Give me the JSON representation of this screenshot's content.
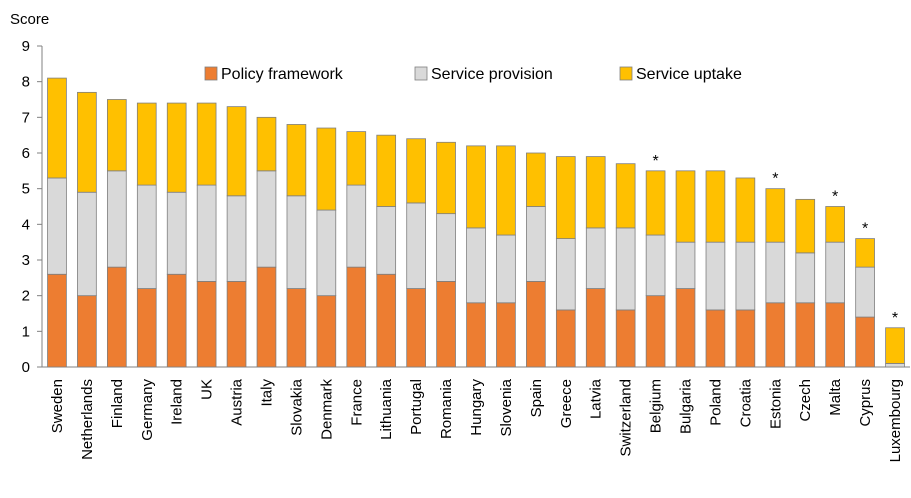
{
  "chart_data": {
    "type": "bar",
    "stacked": true,
    "ylabel": "Score",
    "ylim": [
      0,
      9
    ],
    "yticks": [
      0,
      1,
      2,
      3,
      4,
      5,
      6,
      7,
      8,
      9
    ],
    "grid": false,
    "legend": "top-center",
    "categories": [
      "Sweden",
      "Netherlands",
      "Finland",
      "Germany",
      "Ireland",
      "UK",
      "Austria",
      "Italy",
      "Slovakia",
      "Denmark",
      "France",
      "Lithuania",
      "Portugal",
      "Romania",
      "Hungary",
      "Slovenia",
      "Spain",
      "Greece",
      "Latvia",
      "Switzerland",
      "Belgium",
      "Bulgaria",
      "Poland",
      "Croatia",
      "Estonia",
      "Czech",
      "Malta",
      "Cyprus",
      "Luxembourg"
    ],
    "series": [
      {
        "name": "Policy framework",
        "color": "#ED7D31",
        "values": [
          2.6,
          2.0,
          2.8,
          2.2,
          2.6,
          2.4,
          2.4,
          2.8,
          2.2,
          2.0,
          2.8,
          2.6,
          2.2,
          2.4,
          1.8,
          1.8,
          2.4,
          1.6,
          2.2,
          1.6,
          2.0,
          2.2,
          1.6,
          1.6,
          1.8,
          1.8,
          1.8,
          1.4,
          0.0
        ]
      },
      {
        "name": "Service provision",
        "color": "#D9D9D9",
        "values": [
          2.7,
          2.9,
          2.7,
          2.9,
          2.3,
          2.7,
          2.4,
          2.7,
          2.6,
          2.4,
          2.3,
          1.9,
          2.4,
          1.9,
          2.1,
          1.9,
          2.1,
          2.0,
          1.7,
          2.3,
          1.7,
          1.3,
          1.9,
          1.9,
          1.7,
          1.4,
          1.7,
          1.4,
          0.1
        ]
      },
      {
        "name": "Service uptake",
        "color": "#FFC000",
        "values": [
          2.8,
          2.8,
          2.0,
          2.3,
          2.5,
          2.3,
          2.5,
          1.5,
          2.0,
          2.3,
          1.5,
          2.0,
          1.8,
          2.0,
          2.3,
          2.5,
          1.5,
          2.3,
          2.0,
          1.8,
          1.8,
          2.0,
          2.0,
          1.8,
          1.5,
          1.5,
          1.0,
          0.8,
          1.0
        ]
      }
    ],
    "annotation_symbol": "*",
    "annotated": [
      "Belgium",
      "Estonia",
      "Malta",
      "Cyprus",
      "Luxembourg"
    ]
  }
}
